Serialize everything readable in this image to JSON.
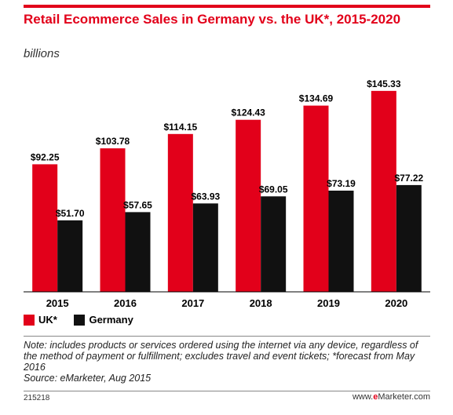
{
  "header": {
    "title": "Retail Ecommerce Sales in Germany vs. the UK*, 2015-2020",
    "subtitle": "billions"
  },
  "colors": {
    "uk": "#e2001a",
    "germany": "#111111",
    "accent": "#e2001a"
  },
  "chart_data": {
    "type": "bar",
    "title": "Retail Ecommerce Sales in Germany vs. the UK*, 2015-2020",
    "subtitle": "billions",
    "xlabel": "",
    "ylabel": "",
    "ylim": [
      0,
      160
    ],
    "grid": false,
    "legend_position": "bottom-left",
    "categories": [
      "2015",
      "2016",
      "2017",
      "2018",
      "2019",
      "2020"
    ],
    "series": [
      {
        "name": "UK*",
        "values": [
          92.25,
          103.78,
          114.15,
          124.43,
          134.69,
          145.33
        ],
        "labels": [
          "$92.25",
          "$103.78",
          "$114.15",
          "$124.43",
          "$134.69",
          "$145.33"
        ]
      },
      {
        "name": "Germany",
        "values": [
          51.7,
          57.65,
          63.93,
          69.05,
          73.19,
          77.22
        ],
        "labels": [
          "$51.70",
          "$57.65",
          "$63.93",
          "$69.05",
          "$73.19",
          "$77.22"
        ]
      }
    ]
  },
  "legend": {
    "uk_label": "UK*",
    "germany_label": "Germany"
  },
  "note": {
    "text": "Note: includes products or services ordered using the internet via any device, regardless of the method of payment or fulfillment; excludes travel and event tickets; *forecast from May 2016",
    "source": "Source: eMarketer, Aug 2015"
  },
  "footer": {
    "id": "215218",
    "brand_prefix": "www.",
    "brand_e": "e",
    "brand_rest": "Marketer.com"
  }
}
